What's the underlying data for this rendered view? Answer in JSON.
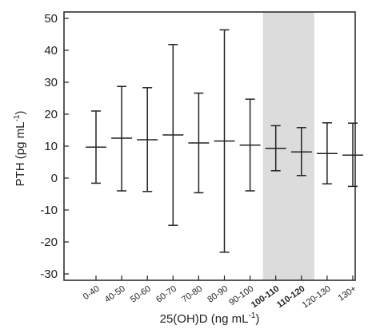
{
  "chart_data": {
    "type": "errorbar",
    "x_label_main": "25(OH)D (ng mL",
    "x_label_sup": "-1",
    "x_label_end": ")",
    "y_label_main": "PTH (pg mL",
    "y_label_sup": "-1",
    "y_label_end": ")",
    "ylim": [
      -32,
      52
    ],
    "y_ticks": [
      -30,
      -20,
      -10,
      0,
      10,
      20,
      30,
      40,
      50
    ],
    "categories": [
      "0-40",
      "40-50",
      "50-60",
      "60-70",
      "70-80",
      "80-90",
      "90-100",
      "100-110",
      "110-120",
      "120-130",
      "130+"
    ],
    "bold_categories": [
      "100-110",
      "110-120"
    ],
    "highlight_categories": [
      "100-110",
      "110-120"
    ],
    "highlight_color": "#dcdcdc",
    "mean": [
      9.7,
      12.5,
      12.0,
      13.5,
      11.0,
      11.6,
      10.3,
      9.3,
      8.2,
      7.7,
      7.2
    ],
    "upper": [
      21.0,
      28.7,
      28.3,
      41.8,
      26.6,
      46.4,
      24.7,
      16.4,
      15.8,
      17.3,
      17.2
    ],
    "lower": [
      -1.6,
      -4.0,
      -4.2,
      -14.8,
      -4.6,
      -23.2,
      -4.0,
      2.3,
      0.8,
      -1.8,
      -2.6
    ],
    "grid": false,
    "legend": "none"
  }
}
